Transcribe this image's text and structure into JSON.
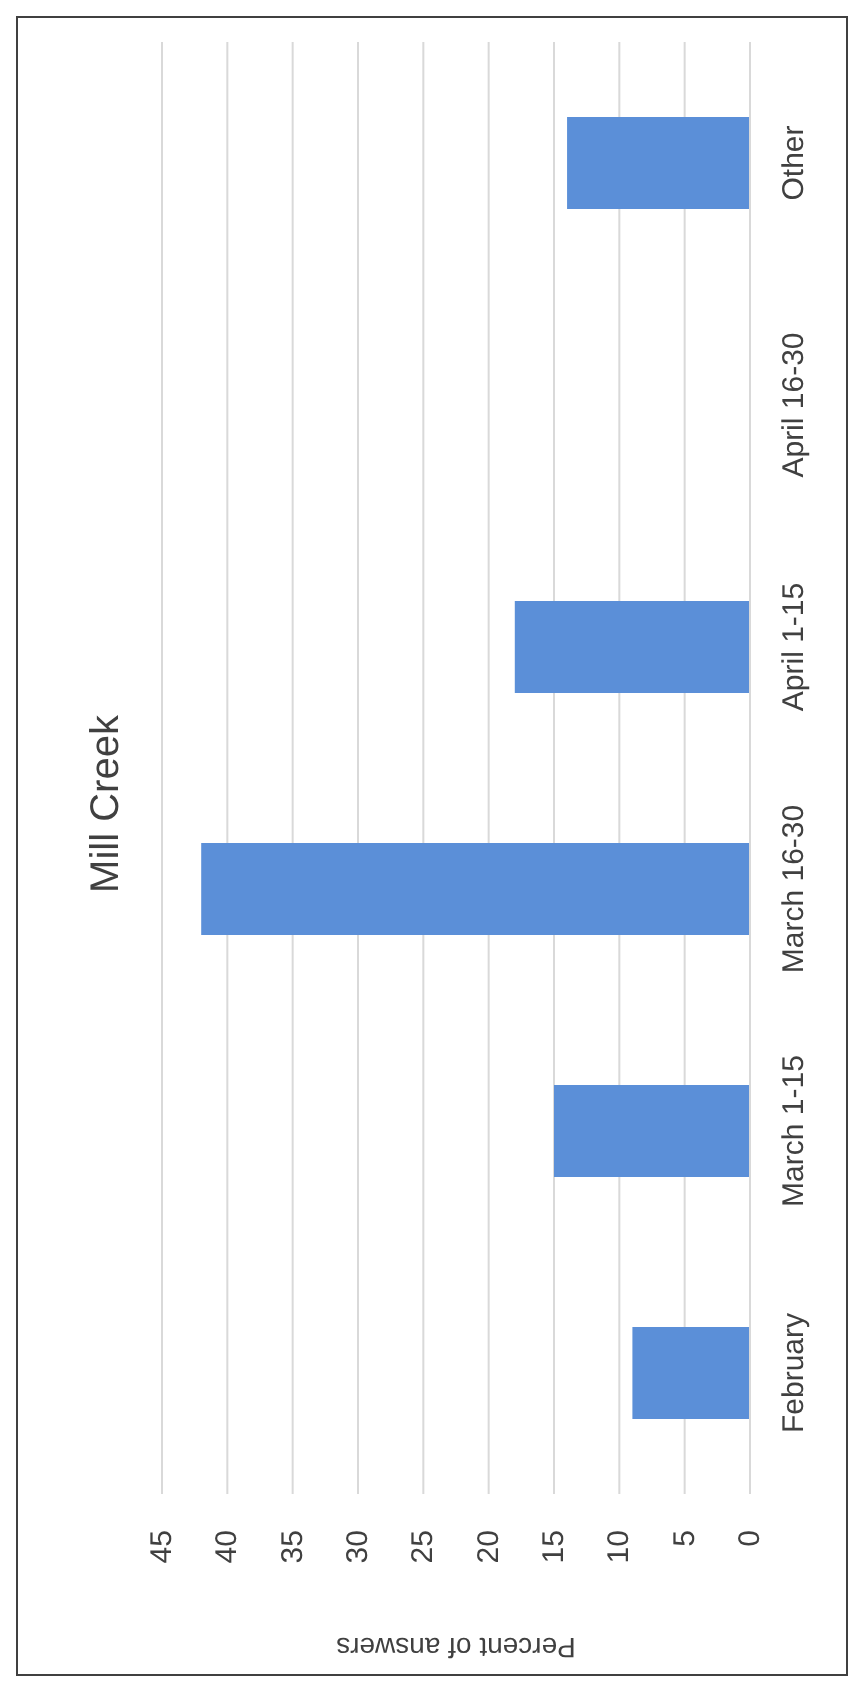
{
  "chart_data": {
    "type": "bar",
    "orientation": "horizontal",
    "title": "Mill Creek",
    "xlabel": "Percent of answers",
    "categories": [
      "Other",
      "April 16-30",
      "April 1-15",
      "March 16-30",
      "March 1-15",
      "February"
    ],
    "values": [
      14,
      0,
      18,
      42,
      15,
      9
    ],
    "color": "#5b8fd8",
    "xlim": [
      45,
      0
    ],
    "xticks": [
      0,
      5,
      10,
      15,
      20,
      25,
      30,
      35,
      40,
      45
    ],
    "grid": "x"
  }
}
